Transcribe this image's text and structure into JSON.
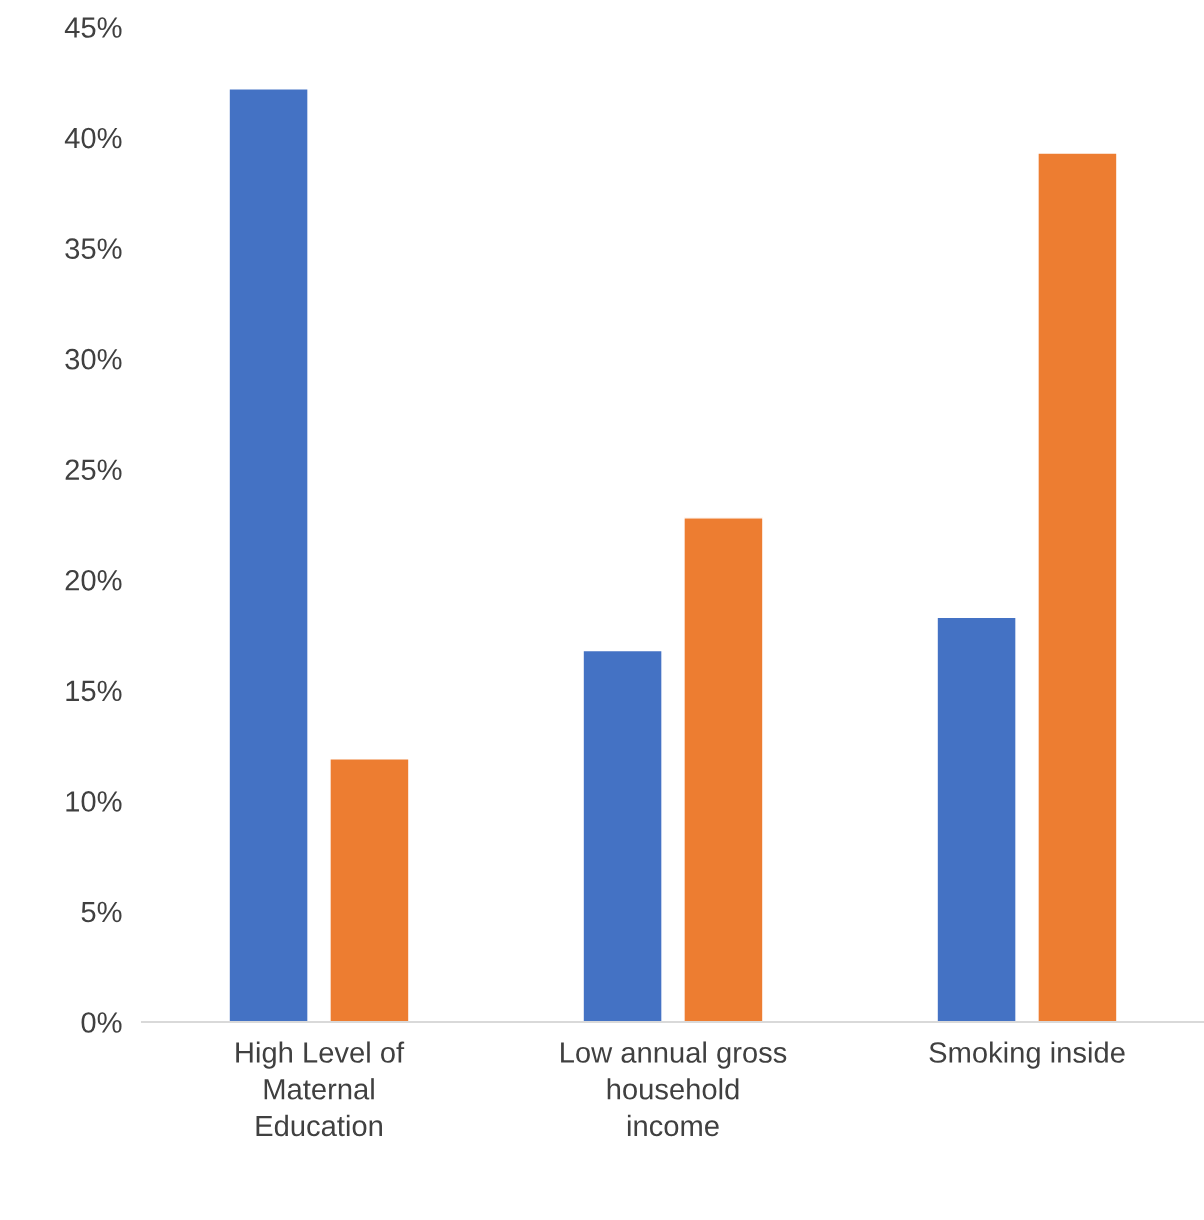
{
  "chart_data": {
    "type": "bar",
    "categories": [
      "High Level of\nMaternal\nEducation",
      "Low annual gross\nhousehold\nincome",
      "Smoking inside"
    ],
    "series": [
      {
        "color": "#4472c4",
        "values": [
          42.2,
          16.8,
          18.3
        ]
      },
      {
        "color": "#ed7d31",
        "values": [
          11.9,
          22.8,
          39.3
        ]
      }
    ],
    "ylim": [
      0,
      45
    ],
    "yticks": [
      {
        "value": 0,
        "label": "0%"
      },
      {
        "value": 5,
        "label": "5%"
      },
      {
        "value": 10,
        "label": "10%"
      },
      {
        "value": 15,
        "label": "15%"
      },
      {
        "value": 20,
        "label": "20%"
      },
      {
        "value": 25,
        "label": "25%"
      },
      {
        "value": 30,
        "label": "30%"
      },
      {
        "value": 35,
        "label": "35%"
      },
      {
        "value": 40,
        "label": "40%"
      },
      {
        "value": 45,
        "label": "45%"
      }
    ],
    "grid": false,
    "legend": false
  }
}
